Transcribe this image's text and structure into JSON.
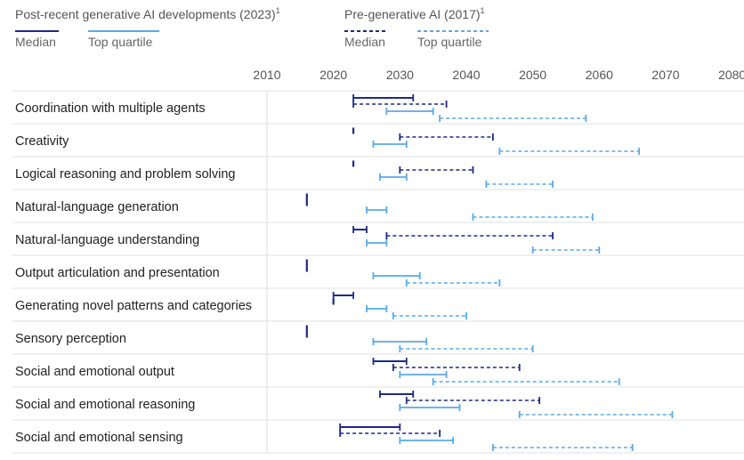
{
  "chart_data": {
    "type": "range-bar",
    "legend": {
      "group_post": {
        "title": "Post-recent generative AI developments (2023)",
        "sup": "1"
      },
      "group_pre": {
        "title": "Pre-generative AI (2017)",
        "sup": "1"
      },
      "median_label": "Median",
      "top_quartile_label": "Top quartile"
    },
    "colors": {
      "median": "#1f2a80",
      "top_quartile": "#5aa9e6"
    },
    "x_ticks": [
      2010,
      2020,
      2030,
      2040,
      2050,
      2060,
      2070,
      2080
    ],
    "xlim": [
      2010,
      2080
    ],
    "series_order": [
      "post_median",
      "pre_median",
      "post_top",
      "pre_top"
    ],
    "categories": [
      {
        "name": "Coordination with multiple agents",
        "post_median": [
          2023,
          2032
        ],
        "pre_median": [
          2023,
          2037
        ],
        "post_top": [
          2028,
          2035
        ],
        "pre_top": [
          2036,
          2058
        ]
      },
      {
        "name": "Creativity",
        "post_median": [
          2023,
          2023
        ],
        "pre_median": [
          2030,
          2044
        ],
        "post_top": [
          2026,
          2031
        ],
        "pre_top": [
          2045,
          2066
        ]
      },
      {
        "name": "Logical reasoning and problem solving",
        "post_median": [
          2023,
          2023
        ],
        "pre_median": [
          2030,
          2041
        ],
        "post_top": [
          2027,
          2031
        ],
        "pre_top": [
          2043,
          2053
        ]
      },
      {
        "name": "Natural-language generation",
        "post_median": [
          2016,
          2016
        ],
        "pre_median": [
          2016,
          2016
        ],
        "post_top": [
          2025,
          2028
        ],
        "pre_top": [
          2041,
          2059
        ]
      },
      {
        "name": "Natural-language understanding",
        "post_median": [
          2023,
          2025
        ],
        "pre_median": [
          2028,
          2053
        ],
        "post_top": [
          2025,
          2028
        ],
        "pre_top": [
          2050,
          2060
        ]
      },
      {
        "name": "Output articulation and presentation",
        "post_median": [
          2016,
          2016
        ],
        "pre_median": [
          2016,
          2016
        ],
        "post_top": [
          2026,
          2033
        ],
        "pre_top": [
          2031,
          2045
        ]
      },
      {
        "name": "Generating novel patterns and categories",
        "post_median": [
          2020,
          2023
        ],
        "pre_median": [
          2020,
          2020
        ],
        "post_top": [
          2025,
          2028
        ],
        "pre_top": [
          2029,
          2040
        ]
      },
      {
        "name": "Sensory perception",
        "post_median": [
          2016,
          2016
        ],
        "pre_median": [
          2016,
          2016
        ],
        "post_top": [
          2026,
          2034
        ],
        "pre_top": [
          2030,
          2050
        ]
      },
      {
        "name": "Social and emotional output",
        "post_median": [
          2026,
          2031
        ],
        "pre_median": [
          2029,
          2048
        ],
        "post_top": [
          2030,
          2037
        ],
        "pre_top": [
          2035,
          2063
        ]
      },
      {
        "name": "Social and emotional reasoning",
        "post_median": [
          2027,
          2032
        ],
        "pre_median": [
          2031,
          2051
        ],
        "post_top": [
          2030,
          2039
        ],
        "pre_top": [
          2048,
          2071
        ]
      },
      {
        "name": "Social and emotional sensing",
        "post_median": [
          2021,
          2030
        ],
        "pre_median": [
          2021,
          2036
        ],
        "post_top": [
          2030,
          2038
        ],
        "pre_top": [
          2044,
          2065
        ]
      }
    ]
  }
}
